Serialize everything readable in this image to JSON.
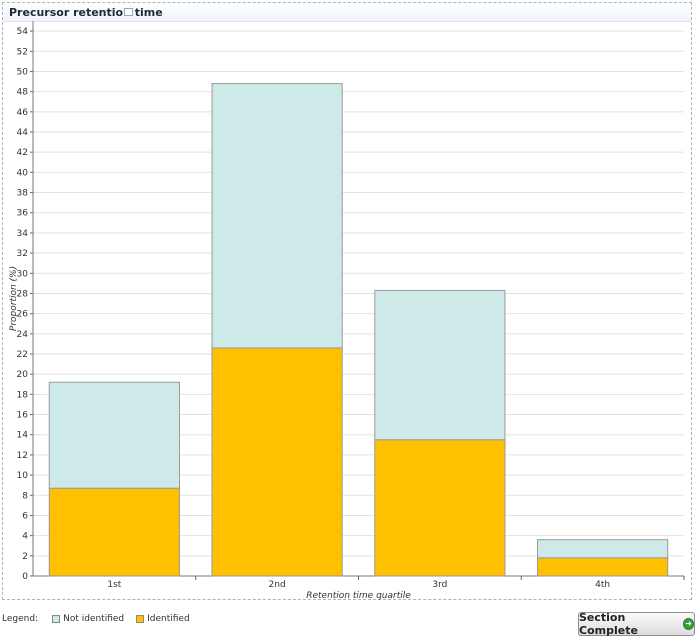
{
  "panel": {
    "title": "Precursor retention time"
  },
  "chart_data": {
    "type": "bar",
    "stacked": true,
    "categories": [
      "1st",
      "2nd",
      "3rd",
      "4th"
    ],
    "series": [
      {
        "name": "Identified",
        "values": [
          8.7,
          22.6,
          13.5,
          1.8
        ]
      },
      {
        "name": "Not identified",
        "values": [
          10.5,
          26.2,
          14.8,
          1.8
        ]
      }
    ],
    "xlabel": "Retention time quartile",
    "ylabel": "Proportion (%)",
    "ylim": [
      0,
      55
    ],
    "yticks": [
      "0",
      "2",
      "4",
      "6",
      "8",
      "10",
      "12",
      "14",
      "16",
      "18",
      "20",
      "22",
      "24",
      "26",
      "28",
      "30",
      "32",
      "34",
      "36",
      "38",
      "40",
      "42",
      "44",
      "46",
      "48",
      "50",
      "52",
      "54"
    ],
    "grid": true,
    "colors": {
      "Identified": "#ffc000",
      "Not identified": "#cde9e8"
    }
  },
  "legend": {
    "label": "Legend:",
    "items": [
      "Not identified",
      "Identified"
    ]
  },
  "actions": {
    "section_complete": "Section Complete"
  }
}
